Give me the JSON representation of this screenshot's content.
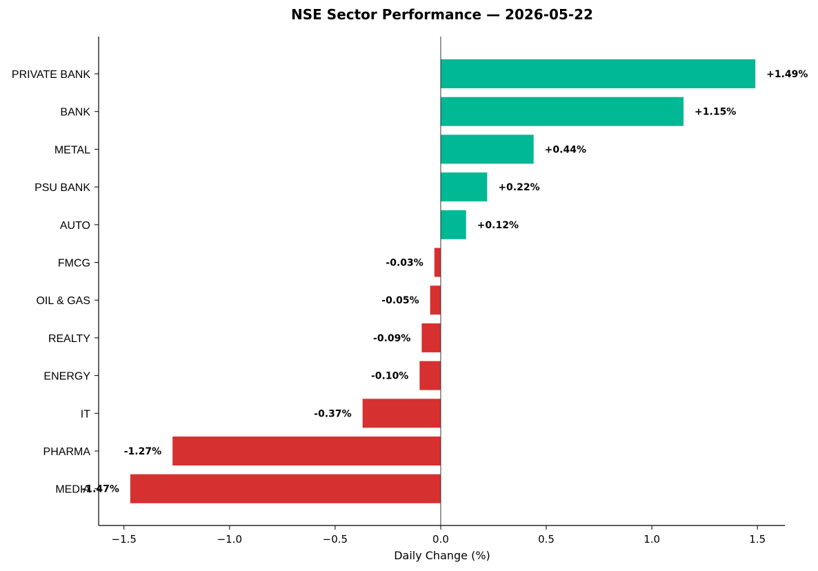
{
  "chart_data": {
    "type": "bar",
    "orientation": "horizontal",
    "title": "NSE Sector Performance — 2026-05-22",
    "xlabel": "Daily Change (%)",
    "ylabel": "",
    "categories": [
      "PRIVATE BANK",
      "BANK",
      "METAL",
      "PSU BANK",
      "AUTO",
      "FMCG",
      "OIL & GAS",
      "REALTY",
      "ENERGY",
      "IT",
      "PHARMA",
      "MEDIA"
    ],
    "values": [
      1.49,
      1.15,
      0.44,
      0.22,
      0.12,
      -0.03,
      -0.05,
      -0.09,
      -0.1,
      -0.37,
      -1.27,
      -1.47
    ],
    "value_labels": [
      "+1.49%",
      "+1.15%",
      "+0.44%",
      "+0.22%",
      "+0.12%",
      "-0.03%",
      "-0.05%",
      "-0.09%",
      "-0.10%",
      "-0.37%",
      "-1.27%",
      "-1.47%"
    ],
    "xlim": [
      -1.62,
      1.63
    ],
    "xticks": [
      -1.5,
      -1.0,
      -0.5,
      0.0,
      0.5,
      1.0,
      1.5
    ],
    "xtick_labels": [
      "−1.5",
      "−1.0",
      "−0.5",
      "0.0",
      "0.5",
      "1.0",
      "1.5"
    ],
    "grid": false,
    "legend": "none",
    "colors": {
      "positive": "#00b894",
      "negative": "#d63031",
      "axis": "#000000"
    }
  }
}
